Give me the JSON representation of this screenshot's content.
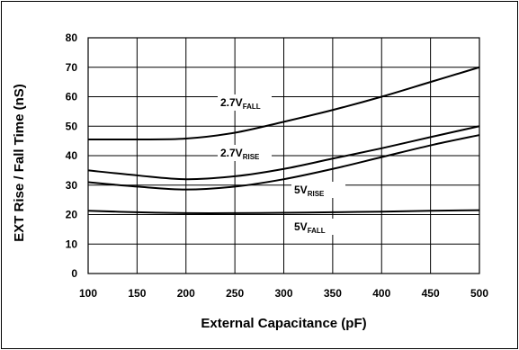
{
  "chart_data": {
    "type": "line",
    "title": "",
    "xlabel": "External Capacitance (pF)",
    "ylabel": "EXT Rise / Fall Time (nS)",
    "xlim": [
      100,
      500
    ],
    "ylim": [
      0,
      80
    ],
    "xticks": [
      100,
      150,
      200,
      250,
      300,
      350,
      400,
      450,
      500
    ],
    "yticks": [
      0,
      10,
      20,
      30,
      40,
      50,
      60,
      70,
      80
    ],
    "grid": true,
    "legend": "inline labels",
    "series": [
      {
        "name": "2.7V FALL",
        "label_main": "2.7V",
        "label_sub": "FALL",
        "x": [
          100,
          150,
          200,
          250,
          300,
          350,
          400,
          450,
          500
        ],
        "y": [
          45.5,
          45.5,
          45.8,
          47.8,
          51.5,
          55.5,
          60.0,
          65.0,
          70.0
        ]
      },
      {
        "name": "2.7V RISE",
        "label_main": "2.7V",
        "label_sub": "RISE",
        "x": [
          100,
          150,
          200,
          250,
          300,
          350,
          400,
          450,
          500
        ],
        "y": [
          35.0,
          33.3,
          32.0,
          33.0,
          35.5,
          39.0,
          42.5,
          46.3,
          50.0
        ]
      },
      {
        "name": "5V RISE",
        "label_main": "5V",
        "label_sub": "RISE",
        "x": [
          100,
          150,
          200,
          250,
          300,
          350,
          400,
          450,
          500
        ],
        "y": [
          31.0,
          29.5,
          28.5,
          29.5,
          32.0,
          35.5,
          39.5,
          43.5,
          47.0
        ]
      },
      {
        "name": "5V FALL",
        "label_main": "5V",
        "label_sub": "FALL",
        "x": [
          100,
          150,
          200,
          250,
          300,
          350,
          400,
          450,
          500
        ],
        "y": [
          21.3,
          20.8,
          20.5,
          20.5,
          20.6,
          20.8,
          21.0,
          21.3,
          21.5
        ]
      }
    ]
  }
}
